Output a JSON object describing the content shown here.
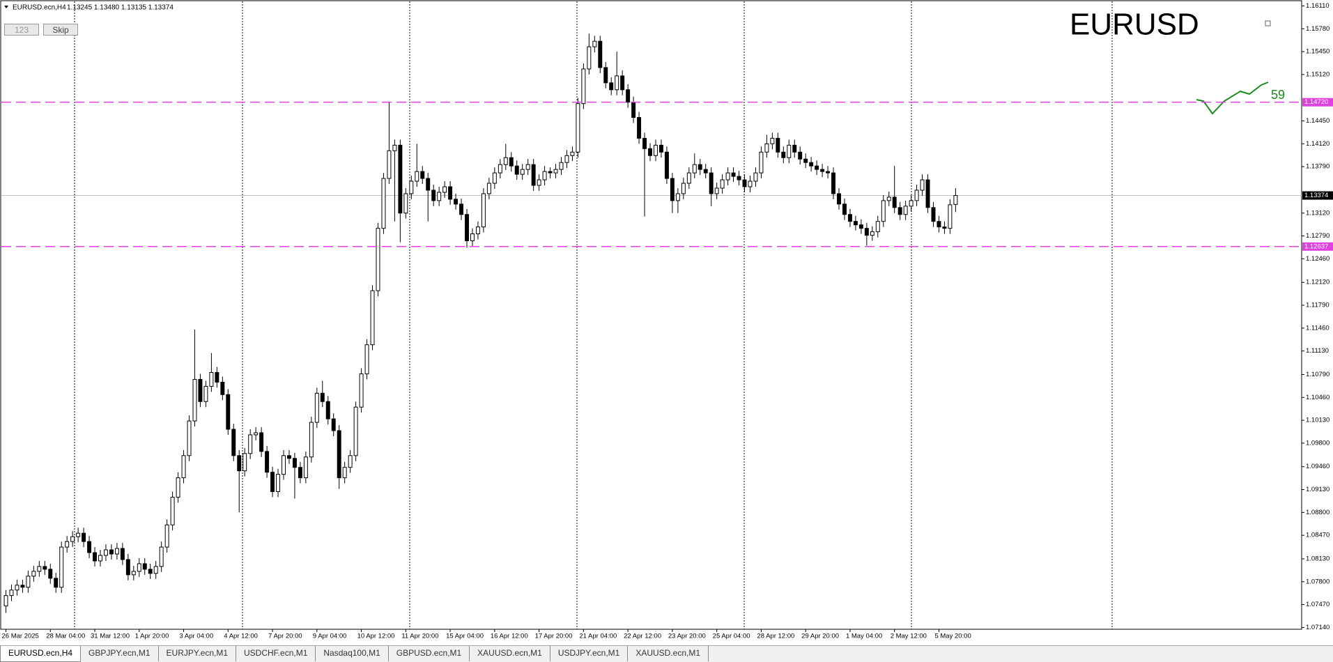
{
  "header": {
    "symbol": "EURUSD.ecn,H4",
    "quote": "1.13245 1.13480 1.13135 1.13374"
  },
  "buttons": [
    "123",
    "Skip"
  ],
  "overlay_title": "EURUSD",
  "indicator_value": 59,
  "tabs": [
    "EURUSD.ecn,H4",
    "GBPJPY.ecn,M1",
    "EURJPY.ecn,M1",
    "USDCHF.ecn,M1",
    "Nasdaq100,M1",
    "GBPUSD.ecn,M1",
    "XAUUSD.ecn,M1",
    "USDJPY.ecn,M1",
    "XAUUSD.ecn,M1"
  ],
  "chart_data": {
    "type": "candlestick",
    "up_color": "#ffffff",
    "down_color": "#000000",
    "outline_color": "#000000",
    "categories": [
      "26 Mar 2025",
      null,
      null,
      null,
      null,
      null,
      null,
      null,
      "28 Mar 04:00",
      null,
      null,
      null,
      null,
      null,
      null,
      null,
      "31 Mar 12:00",
      null,
      null,
      null,
      null,
      null,
      null,
      null,
      "1 Apr 20:00",
      null,
      null,
      null,
      null,
      null,
      null,
      null,
      "3 Apr 04:00",
      null,
      null,
      null,
      null,
      null,
      null,
      null,
      "4 Apr 12:00",
      null,
      null,
      null,
      null,
      null,
      null,
      null,
      "7 Apr 20:00",
      null,
      null,
      null,
      null,
      null,
      null,
      null,
      "9 Apr 04:00",
      null,
      null,
      null,
      null,
      null,
      null,
      null,
      "10 Apr 12:00",
      null,
      null,
      null,
      null,
      null,
      null,
      null,
      "11 Apr 20:00",
      null,
      null,
      null,
      null,
      null,
      null,
      null,
      "15 Apr 04:00",
      null,
      null,
      null,
      null,
      null,
      null,
      null,
      "16 Apr 12:00",
      null,
      null,
      null,
      null,
      null,
      null,
      null,
      "17 Apr 20:00",
      null,
      null,
      null,
      null,
      null,
      null,
      null,
      "21 Apr 04:00",
      null,
      null,
      null,
      null,
      null,
      null,
      null,
      "22 Apr 12:00",
      null,
      null,
      null,
      null,
      null,
      null,
      null,
      "23 Apr 20:00",
      null,
      null,
      null,
      null,
      null,
      null,
      null,
      "25 Apr 04:00",
      null,
      null,
      null,
      null,
      null,
      null,
      null,
      "28 Apr 12:00",
      null,
      null,
      null,
      null,
      null,
      null,
      null,
      "29 Apr 20:00",
      null,
      null,
      null,
      null,
      null,
      null,
      null,
      "1 May 04:00",
      null,
      null,
      null,
      null,
      null,
      null,
      null,
      "2 May 12:00",
      null,
      null,
      null,
      null,
      null,
      null,
      null,
      "5 May 20:00",
      null,
      null,
      null
    ],
    "open": [
      1.0745,
      1.076,
      1.0768,
      1.0775,
      1.0772,
      1.0788,
      1.0795,
      1.0802,
      1.0798,
      1.0785,
      1.0772,
      1.083,
      1.0838,
      1.0845,
      1.085,
      1.0838,
      1.0822,
      1.081,
      1.0818,
      1.0826,
      1.082,
      1.0828,
      1.0812,
      1.079,
      1.0795,
      1.0806,
      1.0798,
      1.0792,
      1.0802,
      1.083,
      1.0862,
      1.0902,
      1.093,
      1.0962,
      1.1012,
      1.1072,
      1.104,
      1.1062,
      1.1082,
      1.1068,
      1.105,
      1.1,
      1.0962,
      1.094,
      1.0965,
      1.0992,
      1.0995,
      1.0968,
      1.0938,
      1.091,
      1.0935,
      1.0962,
      1.0958,
      1.0945,
      1.093,
      1.096,
      1.101,
      1.1052,
      1.104,
      1.1015,
      1.0998,
      1.093,
      1.0945,
      1.0962,
      1.1032,
      1.108,
      1.1122,
      1.12,
      1.129,
      1.1362,
      1.1402,
      1.141,
      1.1312,
      1.134,
      1.1358,
      1.1372,
      1.1362,
      1.1345,
      1.133,
      1.1342,
      1.135,
      1.1332,
      1.1325,
      1.131,
      1.1272,
      1.1282,
      1.1292,
      1.134,
      1.1355,
      1.137,
      1.1382,
      1.1392,
      1.138,
      1.1368,
      1.1375,
      1.1382,
      1.1352,
      1.136,
      1.1372,
      1.137,
      1.1375,
      1.1385,
      1.1395,
      1.14,
      1.147,
      1.152,
      1.1552,
      1.156,
      1.1522,
      1.15,
      1.149,
      1.151,
      1.149,
      1.1472,
      1.145,
      1.142,
      1.1405,
      1.1395,
      1.141,
      1.14,
      1.1362,
      1.133,
      1.134,
      1.1355,
      1.137,
      1.1382,
      1.1375,
      1.137,
      1.134,
      1.1348,
      1.136,
      1.137,
      1.1365,
      1.136,
      1.135,
      1.1358,
      1.137,
      1.14,
      1.1412,
      1.142,
      1.14,
      1.1392,
      1.141,
      1.14,
      1.139,
      1.1385,
      1.138,
      1.1375,
      1.1372,
      1.137,
      1.134,
      1.1325,
      1.131,
      1.13,
      1.1295,
      1.129,
      1.128,
      1.1285,
      1.13,
      1.133,
      1.1335,
      1.132,
      1.131,
      1.1322,
      1.133,
      1.1345,
      1.136,
      1.132,
      1.13,
      1.1292,
      1.129,
      1.13245
    ],
    "high": [
      1.0768,
      1.0776,
      1.0783,
      1.0783,
      1.0796,
      1.0803,
      1.081,
      1.081,
      1.0806,
      1.0793,
      1.0838,
      1.0846,
      1.0853,
      1.0858,
      1.0858,
      1.0846,
      1.083,
      1.0826,
      1.0834,
      1.0834,
      1.0836,
      1.0836,
      1.082,
      1.0803,
      1.0814,
      1.0814,
      1.0806,
      1.081,
      1.0838,
      1.087,
      1.091,
      1.0938,
      1.097,
      1.102,
      1.1144,
      1.108,
      1.107,
      1.111,
      1.109,
      1.1076,
      1.1058,
      1.1008,
      1.097,
      1.0973,
      1.1,
      1.1003,
      1.1003,
      1.0976,
      1.0946,
      1.0943,
      1.097,
      1.097,
      1.0966,
      1.0953,
      1.0968,
      1.1018,
      1.106,
      1.107,
      1.1048,
      1.1023,
      1.1006,
      1.0953,
      1.097,
      1.104,
      1.1088,
      1.113,
      1.1208,
      1.1298,
      1.137,
      1.1472,
      1.1418,
      1.1418,
      1.1348,
      1.1366,
      1.1412,
      1.138,
      1.137,
      1.1353,
      1.135,
      1.1358,
      1.1358,
      1.134,
      1.1333,
      1.1318,
      1.129,
      1.13,
      1.1348,
      1.1363,
      1.1378,
      1.139,
      1.1412,
      1.14,
      1.1388,
      1.1383,
      1.139,
      1.139,
      1.1368,
      1.138,
      1.1378,
      1.1383,
      1.1393,
      1.1403,
      1.1408,
      1.1478,
      1.1528,
      1.1571,
      1.1568,
      1.1568,
      1.153,
      1.1508,
      1.1545,
      1.1518,
      1.1498,
      1.148,
      1.1458,
      1.1428,
      1.1413,
      1.1418,
      1.1418,
      1.1408,
      1.137,
      1.1348,
      1.1363,
      1.1378,
      1.1398,
      1.139,
      1.1383,
      1.1378,
      1.1356,
      1.1368,
      1.1378,
      1.1378,
      1.1373,
      1.1368,
      1.1366,
      1.1378,
      1.1408,
      1.1425,
      1.1428,
      1.1428,
      1.1408,
      1.1418,
      1.1418,
      1.1408,
      1.1398,
      1.1393,
      1.1388,
      1.1383,
      1.138,
      1.1378,
      1.1348,
      1.1333,
      1.1318,
      1.1308,
      1.1303,
      1.1298,
      1.1293,
      1.1308,
      1.1338,
      1.1343,
      1.138,
      1.1328,
      1.133,
      1.1338,
      1.1353,
      1.1368,
      1.1368,
      1.1328,
      1.1308,
      1.13,
      1.1332,
      1.1348
    ],
    "low": [
      1.0735,
      1.0752,
      1.076,
      1.0764,
      1.0764,
      1.078,
      1.0787,
      1.079,
      1.0777,
      1.0764,
      1.0764,
      1.0822,
      1.083,
      1.0837,
      1.083,
      1.0814,
      1.0802,
      1.0802,
      1.081,
      1.0812,
      1.0812,
      1.0804,
      1.0782,
      1.0782,
      1.0787,
      1.079,
      1.0784,
      1.0784,
      1.0794,
      1.0822,
      1.0854,
      1.0894,
      1.0922,
      1.0954,
      1.1004,
      1.1032,
      1.1032,
      1.1054,
      1.106,
      1.1042,
      1.0992,
      1.0954,
      1.088,
      1.0932,
      1.0957,
      1.0984,
      1.096,
      1.093,
      1.0902,
      1.0902,
      1.0927,
      1.095,
      1.09,
      1.0922,
      1.0922,
      1.0952,
      1.1002,
      1.1032,
      1.1007,
      1.099,
      1.0914,
      1.0922,
      1.0937,
      1.0954,
      1.1024,
      1.1072,
      1.1114,
      1.1192,
      1.1282,
      1.1354,
      1.13,
      1.127,
      1.1304,
      1.1332,
      1.135,
      1.1354,
      1.13,
      1.1322,
      1.1322,
      1.1334,
      1.1324,
      1.1317,
      1.1302,
      1.1262,
      1.1264,
      1.1274,
      1.1284,
      1.1332,
      1.1347,
      1.1362,
      1.1374,
      1.1372,
      1.136,
      1.136,
      1.1367,
      1.1344,
      1.1344,
      1.1352,
      1.1362,
      1.1362,
      1.1367,
      1.1377,
      1.1387,
      1.1392,
      1.1462,
      1.1512,
      1.1544,
      1.1514,
      1.1492,
      1.1482,
      1.1482,
      1.1482,
      1.1464,
      1.1442,
      1.1412,
      1.1307,
      1.1387,
      1.1387,
      1.1392,
      1.1354,
      1.1312,
      1.1312,
      1.1332,
      1.1347,
      1.1362,
      1.1367,
      1.1362,
      1.1322,
      1.1332,
      1.134,
      1.1352,
      1.1357,
      1.1352,
      1.1342,
      1.1342,
      1.135,
      1.1362,
      1.1392,
      1.1404,
      1.1392,
      1.1384,
      1.1384,
      1.1392,
      1.1382,
      1.1377,
      1.1372,
      1.1367,
      1.1364,
      1.1362,
      1.1332,
      1.1317,
      1.1302,
      1.1292,
      1.1287,
      1.1282,
      1.1265,
      1.1272,
      1.1277,
      1.1292,
      1.1322,
      1.1312,
      1.1302,
      1.1302,
      1.1314,
      1.1322,
      1.1337,
      1.1312,
      1.1292,
      1.1284,
      1.1282,
      1.1282,
      1.13135
    ],
    "close": [
      1.076,
      1.0768,
      1.0775,
      1.0772,
      1.0788,
      1.0795,
      1.0802,
      1.0798,
      1.0785,
      1.0772,
      1.083,
      1.0838,
      1.0845,
      1.085,
      1.0838,
      1.0822,
      1.081,
      1.0818,
      1.0826,
      1.082,
      1.0828,
      1.0812,
      1.079,
      1.0795,
      1.0806,
      1.0798,
      1.0792,
      1.0802,
      1.083,
      1.0862,
      1.0902,
      1.093,
      1.0962,
      1.1012,
      1.1072,
      1.104,
      1.1062,
      1.1082,
      1.1068,
      1.105,
      1.1,
      1.0962,
      1.094,
      1.0965,
      1.0992,
      1.0995,
      1.0968,
      1.0938,
      1.091,
      1.0935,
      1.0962,
      1.0958,
      1.0945,
      1.093,
      1.096,
      1.101,
      1.1052,
      1.104,
      1.1015,
      1.0998,
      1.093,
      1.0945,
      1.0962,
      1.1032,
      1.108,
      1.1122,
      1.12,
      1.129,
      1.1362,
      1.1402,
      1.141,
      1.1312,
      1.134,
      1.1358,
      1.1372,
      1.1362,
      1.1345,
      1.133,
      1.1342,
      1.135,
      1.1332,
      1.1325,
      1.131,
      1.1272,
      1.1282,
      1.1292,
      1.134,
      1.1355,
      1.137,
      1.1382,
      1.1392,
      1.138,
      1.1368,
      1.1375,
      1.1382,
      1.1352,
      1.136,
      1.1372,
      1.137,
      1.1375,
      1.1385,
      1.1395,
      1.14,
      1.147,
      1.152,
      1.1552,
      1.156,
      1.1522,
      1.15,
      1.149,
      1.151,
      1.149,
      1.1472,
      1.145,
      1.142,
      1.1405,
      1.1395,
      1.141,
      1.14,
      1.1362,
      1.133,
      1.134,
      1.1355,
      1.137,
      1.1382,
      1.1375,
      1.137,
      1.134,
      1.1348,
      1.136,
      1.137,
      1.1365,
      1.136,
      1.135,
      1.1358,
      1.137,
      1.14,
      1.1412,
      1.142,
      1.14,
      1.1392,
      1.141,
      1.14,
      1.139,
      1.1385,
      1.138,
      1.1375,
      1.1372,
      1.137,
      1.134,
      1.1325,
      1.131,
      1.13,
      1.1295,
      1.129,
      1.128,
      1.1285,
      1.13,
      1.133,
      1.1335,
      1.132,
      1.131,
      1.1322,
      1.133,
      1.1345,
      1.136,
      1.132,
      1.13,
      1.1292,
      1.129,
      1.1324,
      1.13374
    ],
    "ylim": [
      1.07114,
      1.16175
    ],
    "yticks": [
      {
        "value": 1.1611,
        "label": "1.16110"
      },
      {
        "value": 1.1578,
        "label": "1.15780"
      },
      {
        "value": 1.1545,
        "label": "1.15450"
      },
      {
        "value": 1.1512,
        "label": "1.15120"
      },
      {
        "value": 1.1445,
        "label": "1.14450"
      },
      {
        "value": 1.1412,
        "label": "1.14120"
      },
      {
        "value": 1.1379,
        "label": "1.13790"
      },
      {
        "value": 1.1312,
        "label": "1.13120"
      },
      {
        "value": 1.1279,
        "label": "1.12790"
      },
      {
        "value": 1.1246,
        "label": "1.12460"
      },
      {
        "value": 1.1212,
        "label": "1.12120"
      },
      {
        "value": 1.1179,
        "label": "1.11790"
      },
      {
        "value": 1.1146,
        "label": "1.11460"
      },
      {
        "value": 1.1113,
        "label": "1.11130"
      },
      {
        "value": 1.1079,
        "label": "1.10790"
      },
      {
        "value": 1.1046,
        "label": "1.10460"
      },
      {
        "value": 1.1013,
        "label": "1.10130"
      },
      {
        "value": 1.098,
        "label": "1.09800"
      },
      {
        "value": 1.0946,
        "label": "1.09460"
      },
      {
        "value": 1.0913,
        "label": "1.09130"
      },
      {
        "value": 1.088,
        "label": "1.08800"
      },
      {
        "value": 1.0847,
        "label": "1.08470"
      },
      {
        "value": 1.0813,
        "label": "1.08130"
      },
      {
        "value": 1.078,
        "label": "1.07800"
      },
      {
        "value": 1.0747,
        "label": "1.07470"
      },
      {
        "value": 1.0714,
        "label": "1.07140"
      }
    ],
    "levels": [
      {
        "value": 1.1472,
        "label": "1.14720",
        "color": "#e040e0"
      },
      {
        "value": 1.12637,
        "label": "1.12637",
        "color": "#e040e0"
      }
    ],
    "bid": {
      "value": 1.13374,
      "label": "1.13374",
      "color": "#c0c0c0"
    }
  }
}
